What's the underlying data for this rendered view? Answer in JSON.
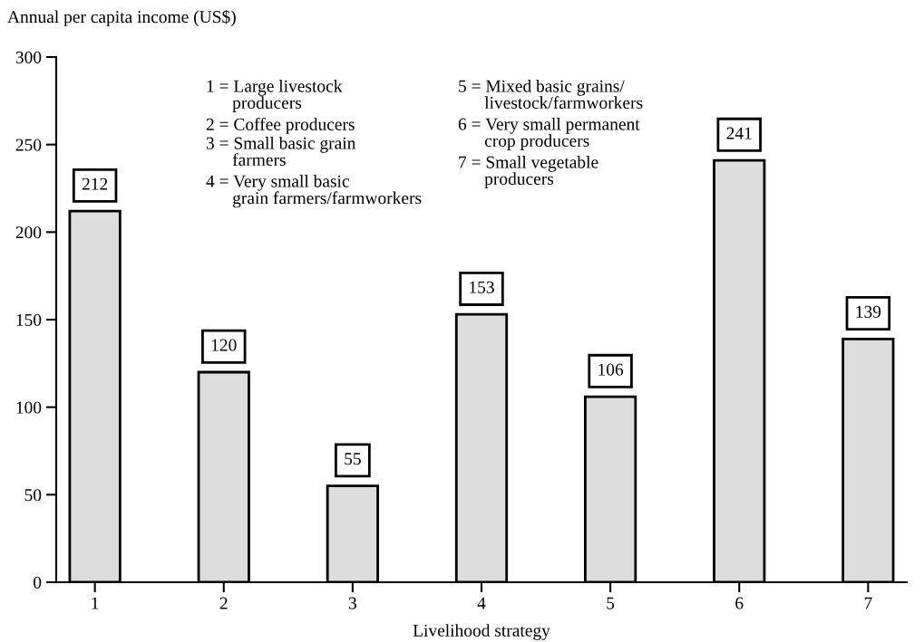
{
  "chart_data": {
    "type": "bar",
    "xlabel": "Livelihood strategy",
    "ylabel": "Annual per capita income (US$)",
    "categories": [
      "1",
      "2",
      "3",
      "4",
      "5",
      "6",
      "7"
    ],
    "values": [
      212,
      120,
      55,
      153,
      106,
      241,
      139
    ],
    "color": "#dddddd",
    "ylim": [
      0,
      300
    ],
    "yticks": [
      0,
      50,
      100,
      150,
      200,
      250,
      300
    ],
    "data_labels": true,
    "grid": false,
    "legend": false,
    "annotations": [
      "1 = Large livestock\n      producers",
      "2 = Coffee producers",
      "3 = Small basic grain\n      farmers",
      "4 = Very small basic\n      grain farmers/farmworkers",
      "5 = Mixed basic grains/\n      livestock/farmworkers",
      "6 = Very small permanent\n      crop producers",
      "7 = Small vegetable\n      producers"
    ]
  }
}
